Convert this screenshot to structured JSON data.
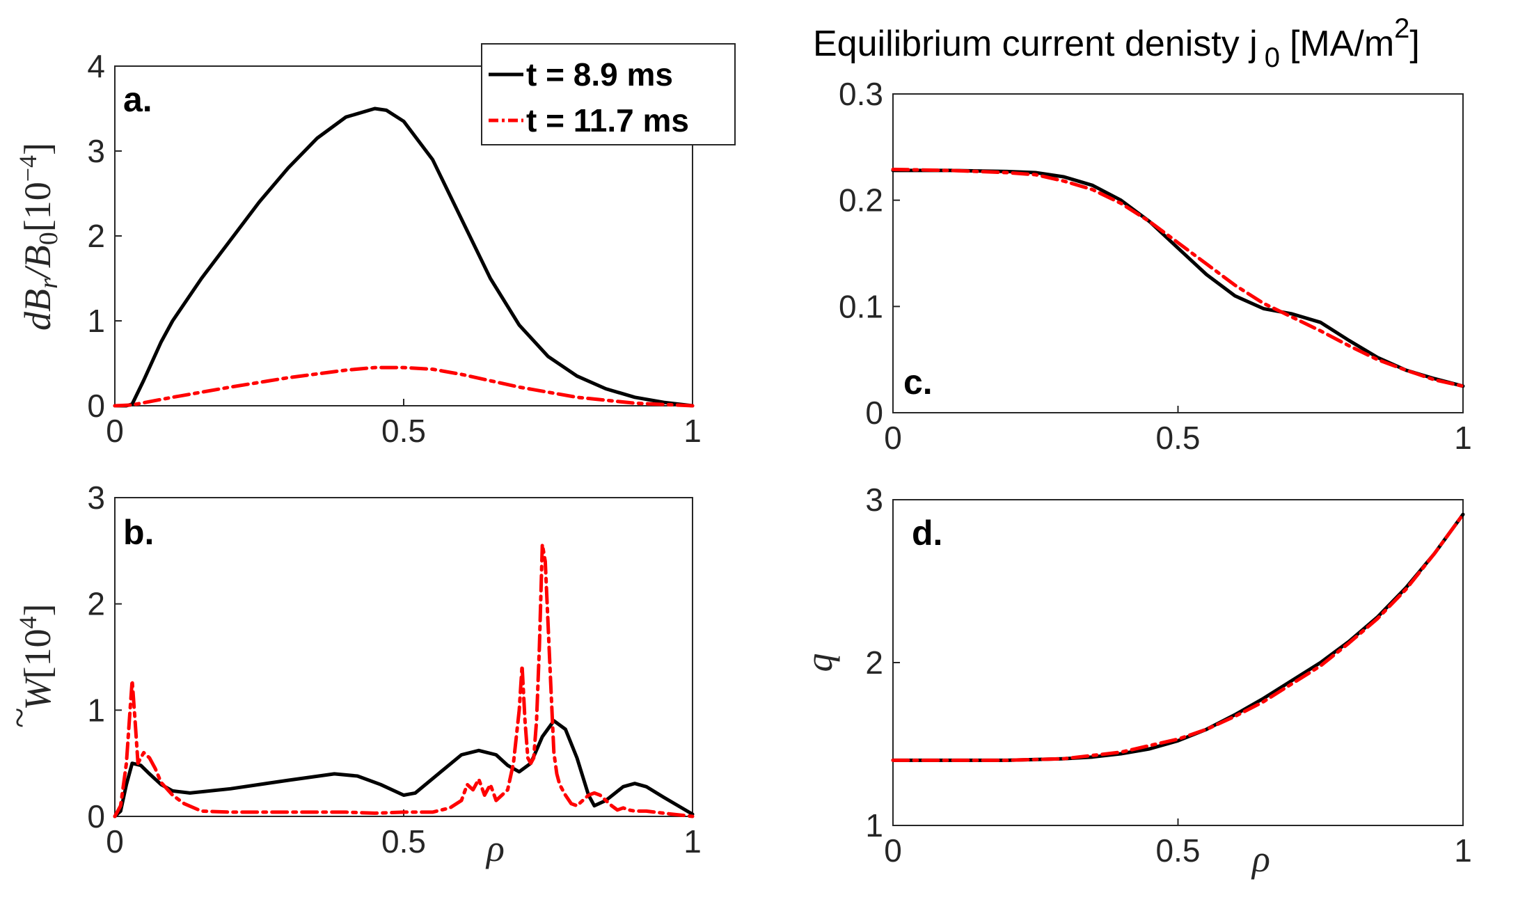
{
  "colors": {
    "series_a": "#000000",
    "series_b": "#ff0000",
    "axis": "#262626"
  },
  "legend": {
    "items": [
      {
        "label": "t = 8.9 ms",
        "color": "#000000",
        "style": "solid"
      },
      {
        "label": "t = 11.7 ms",
        "color": "#ff0000",
        "style": "dashdot"
      }
    ]
  },
  "chart_data": [
    {
      "id": "a",
      "panel_label": "a.",
      "type": "line",
      "title": "",
      "xlabel": "",
      "ylabel_text": "dB_r / B_0 [10^-4]",
      "ylabel_parts": {
        "base": "dB",
        "sub1": "r",
        "mid": "/B",
        "sub2": "0",
        "bracket_open": "[10",
        "sup": "−4",
        "bracket_close": "]"
      },
      "xlim": [
        0,
        1
      ],
      "ylim": [
        0,
        4
      ],
      "xticks": [
        0,
        0.5,
        1
      ],
      "xtick_labels": [
        "0",
        "0.5",
        "1"
      ],
      "yticks": [
        0,
        1,
        2,
        3,
        4
      ],
      "ytick_labels": [
        "0",
        "1",
        "2",
        "3",
        "4"
      ],
      "series": [
        {
          "name": "t = 8.9 ms",
          "x": [
            0,
            0.02,
            0.03,
            0.05,
            0.08,
            0.1,
            0.15,
            0.2,
            0.25,
            0.3,
            0.35,
            0.4,
            0.45,
            0.47,
            0.5,
            0.55,
            0.6,
            0.65,
            0.7,
            0.75,
            0.8,
            0.85,
            0.9,
            0.95,
            1.0
          ],
          "y": [
            0,
            0,
            0.02,
            0.3,
            0.75,
            1.0,
            1.5,
            1.95,
            2.4,
            2.8,
            3.15,
            3.4,
            3.5,
            3.48,
            3.35,
            2.9,
            2.2,
            1.5,
            0.95,
            0.58,
            0.35,
            0.2,
            0.1,
            0.04,
            0
          ]
        },
        {
          "name": "t = 11.7 ms",
          "x": [
            0,
            0.03,
            0.1,
            0.2,
            0.3,
            0.4,
            0.45,
            0.5,
            0.55,
            0.6,
            0.7,
            0.8,
            0.9,
            1.0
          ],
          "y": [
            0,
            0.01,
            0.1,
            0.22,
            0.33,
            0.42,
            0.45,
            0.45,
            0.43,
            0.37,
            0.22,
            0.1,
            0.03,
            0
          ]
        }
      ]
    },
    {
      "id": "b",
      "panel_label": "b.",
      "type": "line",
      "title": "",
      "xlabel": "ρ",
      "ylabel_text": "W̃ [10^4]",
      "ylabel_parts": {
        "base": "W",
        "tilde": "~",
        "bracket_open": "[10",
        "sup": "4",
        "bracket_close": "]"
      },
      "xlim": [
        0,
        1
      ],
      "ylim": [
        0,
        3
      ],
      "xticks": [
        0,
        0.5,
        1
      ],
      "xtick_labels": [
        "0",
        "0.5",
        "1"
      ],
      "yticks": [
        0,
        1,
        2,
        3
      ],
      "ytick_labels": [
        "0",
        "1",
        "2",
        "3"
      ],
      "series": [
        {
          "name": "t = 8.9 ms",
          "x": [
            0,
            0.01,
            0.02,
            0.03,
            0.045,
            0.06,
            0.08,
            0.1,
            0.13,
            0.2,
            0.3,
            0.38,
            0.42,
            0.46,
            0.5,
            0.52,
            0.56,
            0.6,
            0.63,
            0.66,
            0.68,
            0.7,
            0.72,
            0.74,
            0.76,
            0.78,
            0.8,
            0.82,
            0.83,
            0.85,
            0.88,
            0.9,
            0.92,
            0.95,
            1.0
          ],
          "y": [
            0,
            0.05,
            0.3,
            0.5,
            0.48,
            0.4,
            0.3,
            0.24,
            0.22,
            0.26,
            0.34,
            0.4,
            0.38,
            0.3,
            0.2,
            0.22,
            0.4,
            0.58,
            0.62,
            0.58,
            0.48,
            0.42,
            0.5,
            0.75,
            0.9,
            0.82,
            0.55,
            0.2,
            0.1,
            0.15,
            0.28,
            0.31,
            0.28,
            0.18,
            0.02
          ]
        },
        {
          "name": "t = 11.7 ms",
          "x": [
            0,
            0.01,
            0.02,
            0.025,
            0.03,
            0.035,
            0.04,
            0.045,
            0.05,
            0.06,
            0.07,
            0.08,
            0.1,
            0.12,
            0.15,
            0.2,
            0.3,
            0.4,
            0.45,
            0.5,
            0.55,
            0.58,
            0.6,
            0.61,
            0.62,
            0.63,
            0.64,
            0.65,
            0.66,
            0.67,
            0.68,
            0.69,
            0.7,
            0.705,
            0.71,
            0.715,
            0.72,
            0.725,
            0.73,
            0.735,
            0.74,
            0.745,
            0.75,
            0.755,
            0.76,
            0.765,
            0.77,
            0.78,
            0.79,
            0.8,
            0.81,
            0.82,
            0.83,
            0.84,
            0.85,
            0.86,
            0.87,
            0.88,
            0.89,
            0.9,
            0.92,
            0.95,
            1.0
          ],
          "y": [
            0,
            0.1,
            0.5,
            0.9,
            1.28,
            0.9,
            0.5,
            0.55,
            0.6,
            0.55,
            0.45,
            0.32,
            0.2,
            0.12,
            0.05,
            0.04,
            0.04,
            0.04,
            0.03,
            0.04,
            0.04,
            0.08,
            0.15,
            0.3,
            0.25,
            0.35,
            0.2,
            0.3,
            0.15,
            0.2,
            0.25,
            0.5,
            1.0,
            1.42,
            0.9,
            0.55,
            0.5,
            0.55,
            0.9,
            1.6,
            2.56,
            2.4,
            1.8,
            1.2,
            0.6,
            0.4,
            0.3,
            0.2,
            0.12,
            0.1,
            0.15,
            0.2,
            0.22,
            0.2,
            0.15,
            0.1,
            0.06,
            0.08,
            0.06,
            0.05,
            0.05,
            0.03,
            0
          ]
        }
      ]
    },
    {
      "id": "c",
      "panel_label": "c.",
      "type": "line",
      "title_parts": {
        "main": "Equilibrium current denisty j",
        "sub": "0",
        "unit_open": "[MA/m",
        "unit_sup": "2",
        "unit_close": "]"
      },
      "title": "Equilibrium current denisty j 0 [MA/m 2]",
      "xlabel": "",
      "ylabel_text": "",
      "xlim": [
        0,
        1
      ],
      "ylim": [
        0,
        0.3
      ],
      "xticks": [
        0,
        0.5,
        1
      ],
      "xtick_labels": [
        "0",
        "0.5",
        "1"
      ],
      "yticks": [
        0,
        0.1,
        0.2,
        0.3
      ],
      "ytick_labels": [
        "0",
        "0.1",
        "0.2",
        "0.3"
      ],
      "series": [
        {
          "name": "t = 8.9 ms",
          "x": [
            0,
            0.1,
            0.2,
            0.25,
            0.3,
            0.35,
            0.4,
            0.45,
            0.5,
            0.55,
            0.6,
            0.65,
            0.7,
            0.75,
            0.8,
            0.85,
            0.9,
            0.95,
            1.0
          ],
          "y": [
            0.228,
            0.228,
            0.227,
            0.226,
            0.222,
            0.214,
            0.2,
            0.18,
            0.155,
            0.13,
            0.11,
            0.098,
            0.093,
            0.085,
            0.068,
            0.052,
            0.04,
            0.032,
            0.025
          ]
        },
        {
          "name": "t = 11.7 ms",
          "x": [
            0,
            0.1,
            0.2,
            0.25,
            0.3,
            0.35,
            0.4,
            0.45,
            0.5,
            0.55,
            0.6,
            0.65,
            0.7,
            0.75,
            0.8,
            0.85,
            0.9,
            0.95,
            1.0
          ],
          "y": [
            0.229,
            0.228,
            0.226,
            0.224,
            0.218,
            0.21,
            0.197,
            0.18,
            0.16,
            0.14,
            0.12,
            0.103,
            0.09,
            0.077,
            0.063,
            0.05,
            0.04,
            0.031,
            0.025
          ]
        }
      ]
    },
    {
      "id": "d",
      "panel_label": "d.",
      "type": "line",
      "title": "",
      "xlabel": "ρ",
      "ylabel_text": "q",
      "xlim": [
        0,
        1
      ],
      "ylim": [
        1,
        3
      ],
      "xticks": [
        0,
        0.5,
        1
      ],
      "xtick_labels": [
        "0",
        "0.5",
        "1"
      ],
      "yticks": [
        1,
        2,
        3
      ],
      "ytick_labels": [
        "1",
        "2",
        "3"
      ],
      "series": [
        {
          "name": "t = 8.9 ms",
          "x": [
            0,
            0.1,
            0.2,
            0.3,
            0.35,
            0.4,
            0.45,
            0.5,
            0.55,
            0.6,
            0.65,
            0.7,
            0.75,
            0.8,
            0.85,
            0.9,
            0.95,
            1.0
          ],
          "y": [
            1.4,
            1.4,
            1.4,
            1.41,
            1.42,
            1.44,
            1.47,
            1.52,
            1.59,
            1.68,
            1.78,
            1.89,
            2.0,
            2.13,
            2.28,
            2.46,
            2.67,
            2.91
          ]
        },
        {
          "name": "t = 11.7 ms",
          "x": [
            0,
            0.1,
            0.2,
            0.3,
            0.35,
            0.4,
            0.45,
            0.5,
            0.55,
            0.6,
            0.65,
            0.7,
            0.75,
            0.8,
            0.85,
            0.9,
            0.95,
            1.0
          ],
          "y": [
            1.4,
            1.4,
            1.4,
            1.41,
            1.43,
            1.45,
            1.49,
            1.53,
            1.59,
            1.67,
            1.76,
            1.87,
            1.98,
            2.12,
            2.27,
            2.45,
            2.67,
            2.91
          ]
        }
      ]
    }
  ]
}
